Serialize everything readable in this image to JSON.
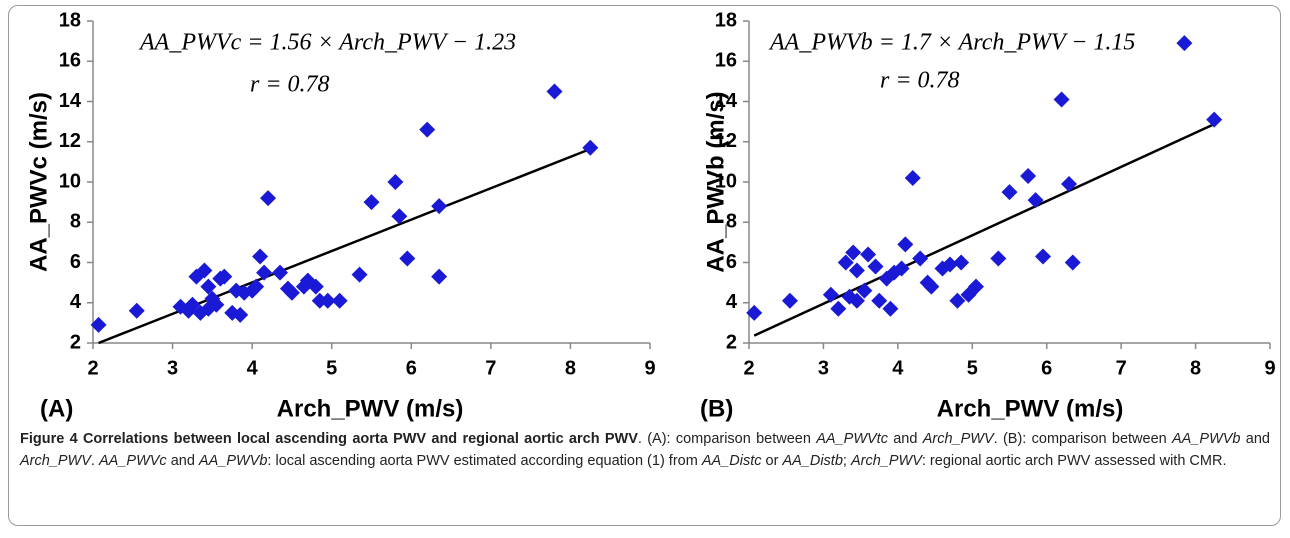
{
  "chart_data": [
    {
      "type": "scatter",
      "panel_label": "(A)",
      "equation": "AA_PWVc = 1.56 × Arch_PWV − 1.23",
      "r_label": "r = 0.78",
      "xlabel": "Arch_PWV (m/s)",
      "ylabel": "AA_PWVc (m/s)",
      "color": "#1a1ad6",
      "fit": {
        "slope": 1.56,
        "intercept": -1.23,
        "color": "#000000"
      },
      "xlim": [
        2,
        9
      ],
      "ylim": [
        2,
        18
      ],
      "xticks": [
        2,
        3,
        4,
        5,
        6,
        7,
        8,
        9
      ],
      "yticks": [
        2,
        4,
        6,
        8,
        10,
        12,
        14,
        16,
        18
      ],
      "x": [
        2.07,
        2.55,
        3.1,
        3.2,
        3.25,
        3.3,
        3.35,
        3.4,
        3.45,
        3.45,
        3.5,
        3.55,
        3.6,
        3.65,
        3.75,
        3.8,
        3.85,
        3.9,
        4.0,
        4.05,
        4.1,
        4.15,
        4.2,
        4.35,
        4.45,
        4.5,
        4.65,
        4.7,
        4.8,
        4.85,
        4.95,
        5.1,
        5.35,
        5.5,
        5.8,
        5.85,
        5.95,
        6.2,
        6.35,
        6.35,
        7.8,
        8.25
      ],
      "y": [
        2.9,
        3.6,
        3.8,
        3.6,
        3.9,
        5.3,
        3.5,
        5.6,
        4.8,
        3.7,
        4.2,
        3.9,
        5.2,
        5.3,
        3.5,
        4.6,
        3.4,
        4.5,
        4.6,
        4.8,
        6.3,
        5.5,
        9.2,
        5.5,
        4.7,
        4.5,
        4.8,
        5.1,
        4.8,
        4.1,
        4.1,
        4.1,
        5.4,
        9.0,
        10.0,
        8.3,
        6.2,
        12.6,
        8.8,
        5.3,
        14.5,
        11.7
      ]
    },
    {
      "type": "scatter",
      "panel_label": "(B)",
      "equation": "AA_PWVb = 1.7 × Arch_PWV − 1.15",
      "r_label": "r = 0.78",
      "xlabel": "Arch_PWV (m/s)",
      "ylabel": "AA_PWVb (m/s)",
      "color": "#1a1ad6",
      "fit": {
        "slope": 1.7,
        "intercept": -1.15,
        "color": "#000000"
      },
      "xlim": [
        2,
        9
      ],
      "ylim": [
        2,
        18
      ],
      "xticks": [
        2,
        3,
        4,
        5,
        6,
        7,
        8,
        9
      ],
      "yticks": [
        2,
        4,
        6,
        8,
        10,
        12,
        14,
        16,
        18
      ],
      "x": [
        2.07,
        2.55,
        3.1,
        3.2,
        3.3,
        3.35,
        3.4,
        3.45,
        3.45,
        3.55,
        3.6,
        3.7,
        3.75,
        3.85,
        3.9,
        3.95,
        4.05,
        4.1,
        4.2,
        4.3,
        4.4,
        4.45,
        4.6,
        4.7,
        4.8,
        4.85,
        4.95,
        5.05,
        5.35,
        5.5,
        5.75,
        5.85,
        5.95,
        6.2,
        6.3,
        6.35,
        7.85,
        8.25
      ],
      "y": [
        3.5,
        4.1,
        4.4,
        3.7,
        6.0,
        4.3,
        6.5,
        5.6,
        4.1,
        4.6,
        6.4,
        5.8,
        4.1,
        5.2,
        3.7,
        5.5,
        5.7,
        6.9,
        10.2,
        6.2,
        5.0,
        4.8,
        5.7,
        5.9,
        4.1,
        6.0,
        4.4,
        4.8,
        6.2,
        9.5,
        10.3,
        9.1,
        6.3,
        14.1,
        9.9,
        6.0,
        16.9,
        13.1
      ]
    }
  ],
  "caption": [
    {
      "text": "Figure 4 Correlations between local ascending aorta PWV and regional aortic arch PWV",
      "style": "bold"
    },
    {
      "text": ". (A): comparison between ",
      "style": "normal"
    },
    {
      "text": "AA_PWVtc",
      "style": "italic"
    },
    {
      "text": " and ",
      "style": "normal"
    },
    {
      "text": "Arch_PWV",
      "style": "italic"
    },
    {
      "text": ". (B): comparison between ",
      "style": "normal"
    },
    {
      "text": "AA_PWVb",
      "style": "italic"
    },
    {
      "text": " and ",
      "style": "normal"
    },
    {
      "text": "Arch_PWV",
      "style": "italic"
    },
    {
      "text": ". ",
      "style": "normal"
    },
    {
      "text": "AA_PWVc",
      "style": "italic"
    },
    {
      "text": " and ",
      "style": "normal"
    },
    {
      "text": "AA_PWVb",
      "style": "italic"
    },
    {
      "text": ": local ascending aorta PWV estimated according equation (1) from ",
      "style": "normal"
    },
    {
      "text": "AA_Distc",
      "style": "italic"
    },
    {
      "text": " or ",
      "style": "normal"
    },
    {
      "text": "AA_Distb",
      "style": "italic"
    },
    {
      "text": "; ",
      "style": "normal"
    },
    {
      "text": "Arch_PWV",
      "style": "italic"
    },
    {
      "text": ": regional aortic arch PWV assessed with CMR.",
      "style": "normal"
    }
  ]
}
